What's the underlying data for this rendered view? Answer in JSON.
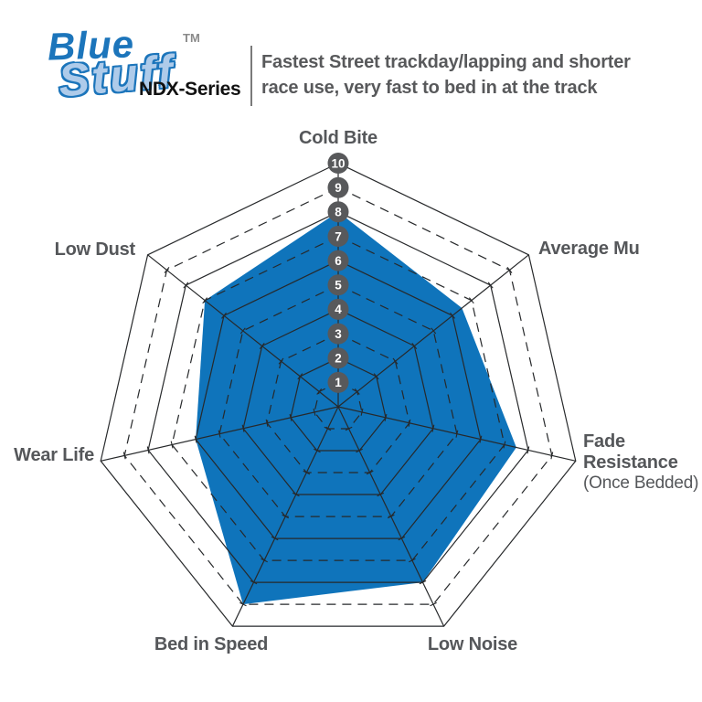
{
  "header": {
    "logo": {
      "word1": "Blue",
      "word2": "Stuff",
      "tm": "TM",
      "series": "NDX-Series",
      "colors": {
        "blue": "#1C75BB",
        "light_blue": "#AECBEA"
      }
    },
    "description": {
      "line1": "Fastest Street trackday/lapping and shorter",
      "line2": "race use, very fast to bed in at the track"
    }
  },
  "chart_data": {
    "type": "radar",
    "title": "BlueStuff NDX-Series brake pad performance ratings",
    "categories": [
      "Cold Bite",
      "Average Mu",
      "Fade Resistance",
      "Low Noise",
      "Bed in Speed",
      "Wear Life",
      "Low Dust"
    ],
    "values": [
      8,
      6.5,
      7.5,
      8,
      9,
      6,
      7
    ],
    "axis_note": {
      "axis": "Fade Resistance",
      "text": "(Once Bedded)"
    },
    "scale": {
      "min": 1,
      "max": 10,
      "ticks": [
        "1",
        "2",
        "3",
        "4",
        "5",
        "6",
        "7",
        "8",
        "9",
        "10"
      ]
    },
    "grid": {
      "shape": "heptagon",
      "solid_rings": "even values",
      "dashed_rings": "odd values",
      "spokes": true
    },
    "legend": "none",
    "colors": {
      "fill": "#0F74BB",
      "grid": "#27292B",
      "badge": "#58595B",
      "badge_text": "#FFFFFF",
      "label_text": "#55575A"
    }
  }
}
